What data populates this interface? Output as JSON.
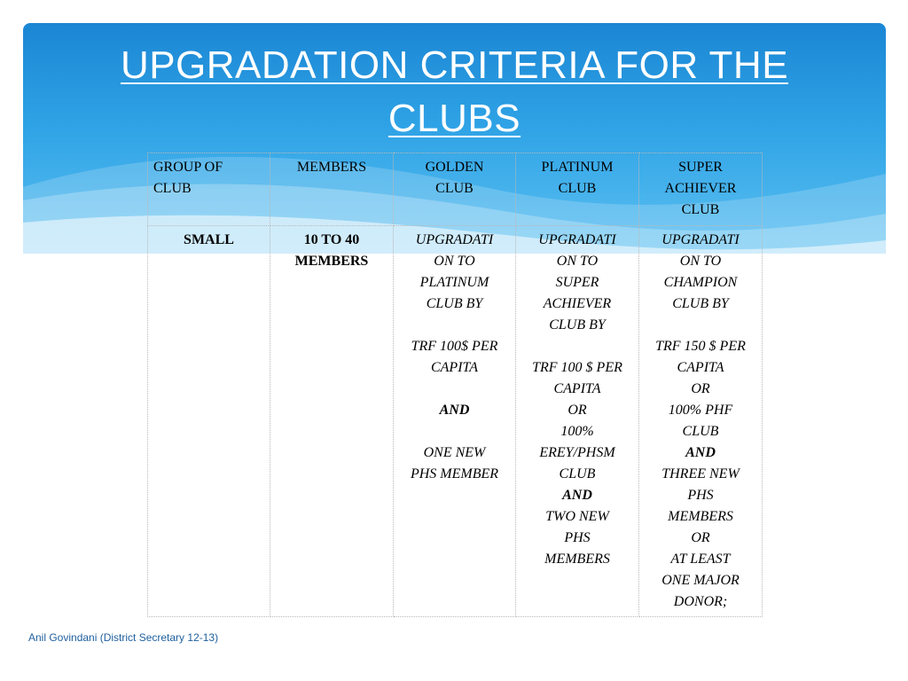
{
  "slide": {
    "title_line1": "UPGRADATION CRITERIA FOR THE",
    "title_line2": "CLUBS",
    "footer": "Anil Govindani  (District Secretary 12-13)"
  },
  "colors": {
    "banner_top": "#1b86d4",
    "banner_bottom": "#5cc0f1",
    "title": "#ffffff",
    "footer": "#1f5f9e"
  },
  "table": {
    "headers": [
      "GROUP OF\nCLUB",
      "MEMBERS",
      "GOLDEN\nCLUB",
      "PLATINUM\nCLUB",
      "SUPER\nACHIEVER\nCLUB"
    ],
    "group": "SMALL",
    "members": "10 TO 40\nMEMBERS",
    "golden": {
      "lead": "UPGRADATI\nON TO\nPLATINUM\nCLUB BY\n\nTRF 100$ PER\nCAPITA\n\n",
      "and": "AND",
      "tail": "\n\nONE NEW\nPHS MEMBER"
    },
    "platinum": {
      "lead": "UPGRADATI\nON TO\nSUPER\nACHIEVER\nCLUB BY\n\nTRF 100 $ PER\nCAPITA\nOR\n100%\nEREY/PHSM\nCLUB\n",
      "and": "AND",
      "tail": "\nTWO NEW\nPHS\nMEMBERS"
    },
    "super": {
      "lead": "UPGRADATI\nON TO\nCHAMPION\nCLUB BY\n\nTRF 150 $ PER\nCAPITA\nOR\n100% PHF\nCLUB\n",
      "and": "AND",
      "tail": "\nTHREE NEW\nPHS\nMEMBERS\nOR\nAT LEAST\nONE MAJOR\nDONOR;"
    }
  }
}
